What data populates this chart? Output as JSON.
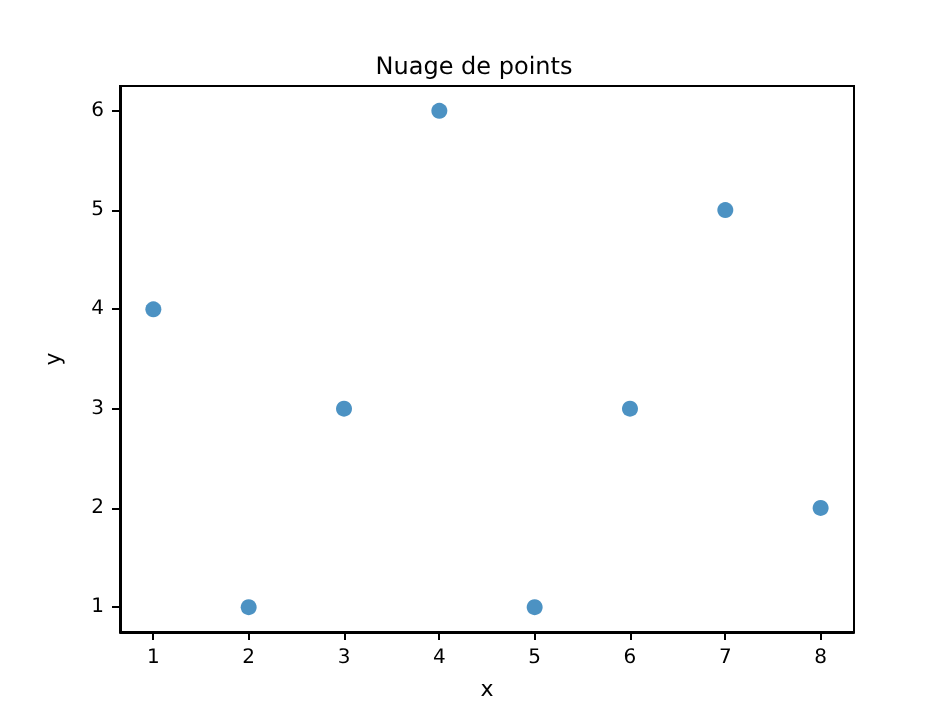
{
  "chart_data": {
    "type": "scatter",
    "title": "Nuage de points",
    "xlabel": "x",
    "ylabel": "y",
    "x": [
      1,
      2,
      3,
      4,
      5,
      6,
      7,
      8
    ],
    "series": [
      {
        "color": "#1f77b4",
        "values": [
          4,
          1,
          3,
          6,
          1,
          3,
          5,
          2
        ]
      }
    ],
    "xlim": [
      0.65,
      8.35
    ],
    "xticks": [
      1,
      2,
      3,
      4,
      5,
      6,
      7,
      8
    ],
    "ylim": [
      0.75,
      6.25
    ],
    "yticks": [
      1,
      2,
      3,
      4,
      5,
      6
    ],
    "grid": false,
    "marker": "circle"
  }
}
